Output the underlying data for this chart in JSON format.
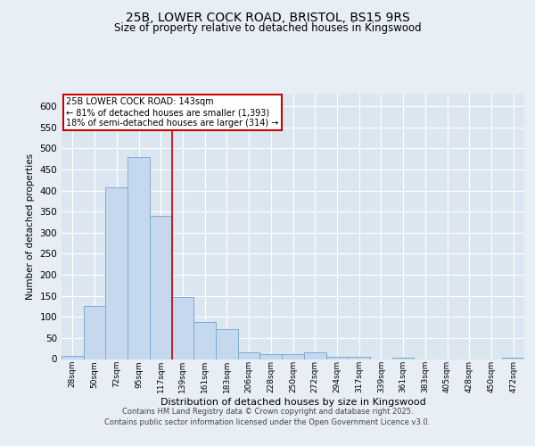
{
  "title_line1": "25B, LOWER COCK ROAD, BRISTOL, BS15 9RS",
  "title_line2": "Size of property relative to detached houses in Kingswood",
  "xlabel": "Distribution of detached houses by size in Kingswood",
  "ylabel": "Number of detached properties",
  "bins": [
    "28sqm",
    "50sqm",
    "72sqm",
    "95sqm",
    "117sqm",
    "139sqm",
    "161sqm",
    "183sqm",
    "206sqm",
    "228sqm",
    "250sqm",
    "272sqm",
    "294sqm",
    "317sqm",
    "339sqm",
    "361sqm",
    "383sqm",
    "405sqm",
    "428sqm",
    "450sqm",
    "472sqm"
  ],
  "values": [
    8,
    127,
    408,
    480,
    340,
    147,
    88,
    70,
    15,
    12,
    12,
    15,
    6,
    5,
    0,
    3,
    0,
    0,
    0,
    0,
    3
  ],
  "bar_color": "#c5d8ed",
  "bar_edge_color": "#7aadd4",
  "bar_width": 1.0,
  "red_line_x": 4.5,
  "annotation_text": "25B LOWER COCK ROAD: 143sqm\n← 81% of detached houses are smaller (1,393)\n18% of semi-detached houses are larger (314) →",
  "annotation_box_color": "#ffffff",
  "annotation_box_edge": "#cc0000",
  "vline_color": "#cc0000",
  "ylim": [
    0,
    630
  ],
  "yticks": [
    0,
    50,
    100,
    150,
    200,
    250,
    300,
    350,
    400,
    450,
    500,
    550,
    600
  ],
  "background_color": "#e8eef5",
  "plot_background": "#dce6f0",
  "footer_line1": "Contains HM Land Registry data © Crown copyright and database right 2025.",
  "footer_line2": "Contains public sector information licensed under the Open Government Licence v3.0."
}
